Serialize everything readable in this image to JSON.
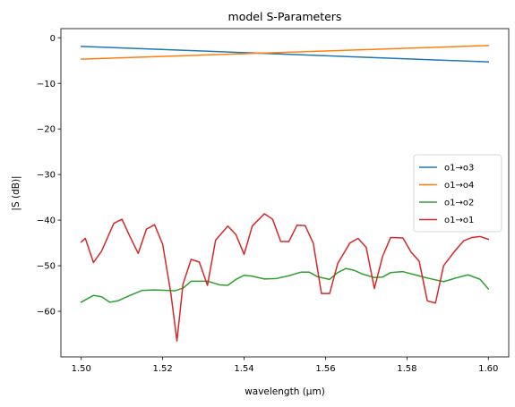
{
  "chart_data": {
    "type": "line",
    "title": "model S-Parameters",
    "xlabel": "wavelength (µm)",
    "ylabel": "|S (dB)|",
    "xlim": [
      1.495,
      1.605
    ],
    "ylim": [
      -70,
      2
    ],
    "xticks": [
      1.5,
      1.52,
      1.54,
      1.56,
      1.58,
      1.6
    ],
    "xtick_labels": [
      "1.50",
      "1.52",
      "1.54",
      "1.56",
      "1.58",
      "1.60"
    ],
    "yticks": [
      0,
      -10,
      -20,
      -30,
      -40,
      -50,
      -60
    ],
    "ytick_labels": [
      "0",
      "−10",
      "−20",
      "−30",
      "−40",
      "−50",
      "−60"
    ],
    "grid": false,
    "legend_position": "center-right",
    "series": [
      {
        "name": "o1→o3",
        "color": "#1f77b4",
        "x": [
          1.5,
          1.6
        ],
        "y": [
          -1.9,
          -5.3
        ]
      },
      {
        "name": "o1→o4",
        "color": "#ff7f0e",
        "x": [
          1.5,
          1.6
        ],
        "y": [
          -4.7,
          -1.7
        ]
      },
      {
        "name": "o1→o2",
        "color": "#2ca02c",
        "x": [
          1.5,
          1.503,
          1.505,
          1.507,
          1.509,
          1.512,
          1.515,
          1.518,
          1.521,
          1.523,
          1.525,
          1.527,
          1.529,
          1.531,
          1.534,
          1.536,
          1.538,
          1.54,
          1.542,
          1.545,
          1.548,
          1.551,
          1.554,
          1.556,
          1.558,
          1.561,
          1.563,
          1.565,
          1.567,
          1.569,
          1.572,
          1.574,
          1.576,
          1.579,
          1.582,
          1.585,
          1.589,
          1.592,
          1.595,
          1.598,
          1.6
        ],
        "y": [
          -58.0,
          -56.5,
          -56.8,
          -58.0,
          -57.7,
          -56.5,
          -55.4,
          -55.3,
          -55.4,
          -55.5,
          -54.9,
          -53.4,
          -53.4,
          -53.4,
          -54.2,
          -54.3,
          -53.0,
          -52.1,
          -52.3,
          -52.9,
          -52.8,
          -52.2,
          -51.4,
          -51.4,
          -52.4,
          -53.0,
          -51.5,
          -50.6,
          -51.0,
          -51.8,
          -52.6,
          -52.5,
          -51.5,
          -51.3,
          -52.0,
          -52.7,
          -53.5,
          -52.7,
          -52.0,
          -53.0,
          -55.1
        ]
      },
      {
        "name": "o1→o1",
        "color": "#d62728",
        "x": [
          1.5,
          1.501,
          1.503,
          1.505,
          1.508,
          1.51,
          1.512,
          1.514,
          1.516,
          1.518,
          1.52,
          1.522,
          1.5235,
          1.525,
          1.527,
          1.529,
          1.531,
          1.533,
          1.536,
          1.538,
          1.54,
          1.542,
          1.545,
          1.547,
          1.549,
          1.551,
          1.553,
          1.555,
          1.557,
          1.559,
          1.561,
          1.563,
          1.566,
          1.568,
          1.57,
          1.572,
          1.574,
          1.576,
          1.579,
          1.581,
          1.583,
          1.585,
          1.587,
          1.589,
          1.592,
          1.594,
          1.596,
          1.598,
          1.6
        ],
        "y": [
          -44.8,
          -44.0,
          -49.3,
          -46.8,
          -40.7,
          -39.8,
          -43.7,
          -47.3,
          -42.0,
          -41.0,
          -45.3,
          -56.0,
          -66.5,
          -54.0,
          -48.6,
          -49.2,
          -54.3,
          -44.4,
          -41.3,
          -43.2,
          -47.5,
          -41.3,
          -38.6,
          -39.8,
          -44.7,
          -44.7,
          -41.1,
          -41.2,
          -45.1,
          -56.1,
          -56.1,
          -49.5,
          -45.0,
          -44.0,
          -46.0,
          -55.0,
          -48.0,
          -43.8,
          -43.9,
          -47.0,
          -49.0,
          -57.7,
          -58.2,
          -50.0,
          -46.5,
          -44.5,
          -43.8,
          -43.6,
          -44.2
        ]
      }
    ]
  }
}
